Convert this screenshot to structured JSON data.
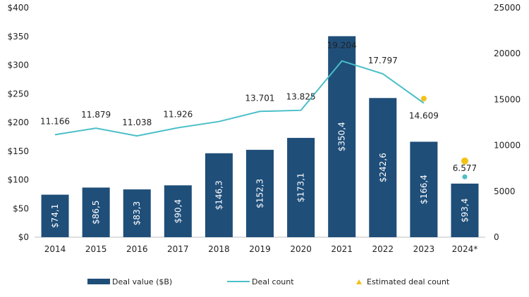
{
  "chart_data": {
    "type": "bar",
    "categories": [
      "2014",
      "2015",
      "2016",
      "2017",
      "2018",
      "2019",
      "2020",
      "2021",
      "2022",
      "2023",
      "2024*"
    ],
    "series": [
      {
        "name": "Deal value ($B)",
        "axis": "left",
        "type": "bar",
        "values": [
          74.1,
          86.5,
          83.3,
          90.4,
          146.3,
          152.3,
          173.1,
          350.4,
          242.6,
          166.4,
          93.4
        ],
        "labels": [
          "$74,1",
          "$86,5",
          "$83,3",
          "$90,4",
          "$146,3",
          "$152,3",
          "$173,1",
          "$350,4",
          "$242,6",
          "$166,4",
          "$93,4"
        ],
        "color": "#1f4e79"
      },
      {
        "name": "Deal count",
        "axis": "right",
        "type": "line",
        "values": [
          11166,
          11879,
          11038,
          11926,
          12600,
          13701,
          13825,
          19204,
          17797,
          14609,
          null
        ],
        "labels": [
          "11.166",
          "11.879",
          "11.038",
          "11.926",
          "",
          "13.701",
          "13.825",
          "19.204",
          "17.797",
          "14.609",
          ""
        ],
        "color": "#4bbfc8"
      },
      {
        "name": "Estimated deal count",
        "axis": "right",
        "type": "scatter",
        "points": [
          {
            "category": "2023",
            "value": 15100
          },
          {
            "category": "2024*",
            "value": 8300
          }
        ],
        "color": "#f2c218"
      }
    ],
    "extra_points": [
      {
        "category": "2024*",
        "value": 6577,
        "label": "6.577",
        "color": "#4bbfc8"
      }
    ],
    "left_axis": {
      "min": 0,
      "max": 400,
      "step": 50,
      "tick_labels": [
        "$0",
        "$50",
        "$100",
        "$150",
        "$200",
        "$250",
        "$300",
        "$350",
        "$400"
      ]
    },
    "right_axis": {
      "min": 0,
      "max": 25000,
      "step": 5000,
      "tick_labels": [
        "0",
        "5000",
        "10000",
        "15000",
        "20000",
        "25000"
      ]
    },
    "legend": {
      "position": "bottom",
      "items": [
        {
          "label": "Deal value ($B)",
          "kind": "bar",
          "color": "#1f4e79"
        },
        {
          "label": "Deal count",
          "kind": "line",
          "color": "#4bbfc8"
        },
        {
          "label": "Estimated deal count",
          "kind": "triangle",
          "color": "#f2c218"
        }
      ]
    },
    "title": "",
    "xlabel": "",
    "ylabel": ""
  }
}
